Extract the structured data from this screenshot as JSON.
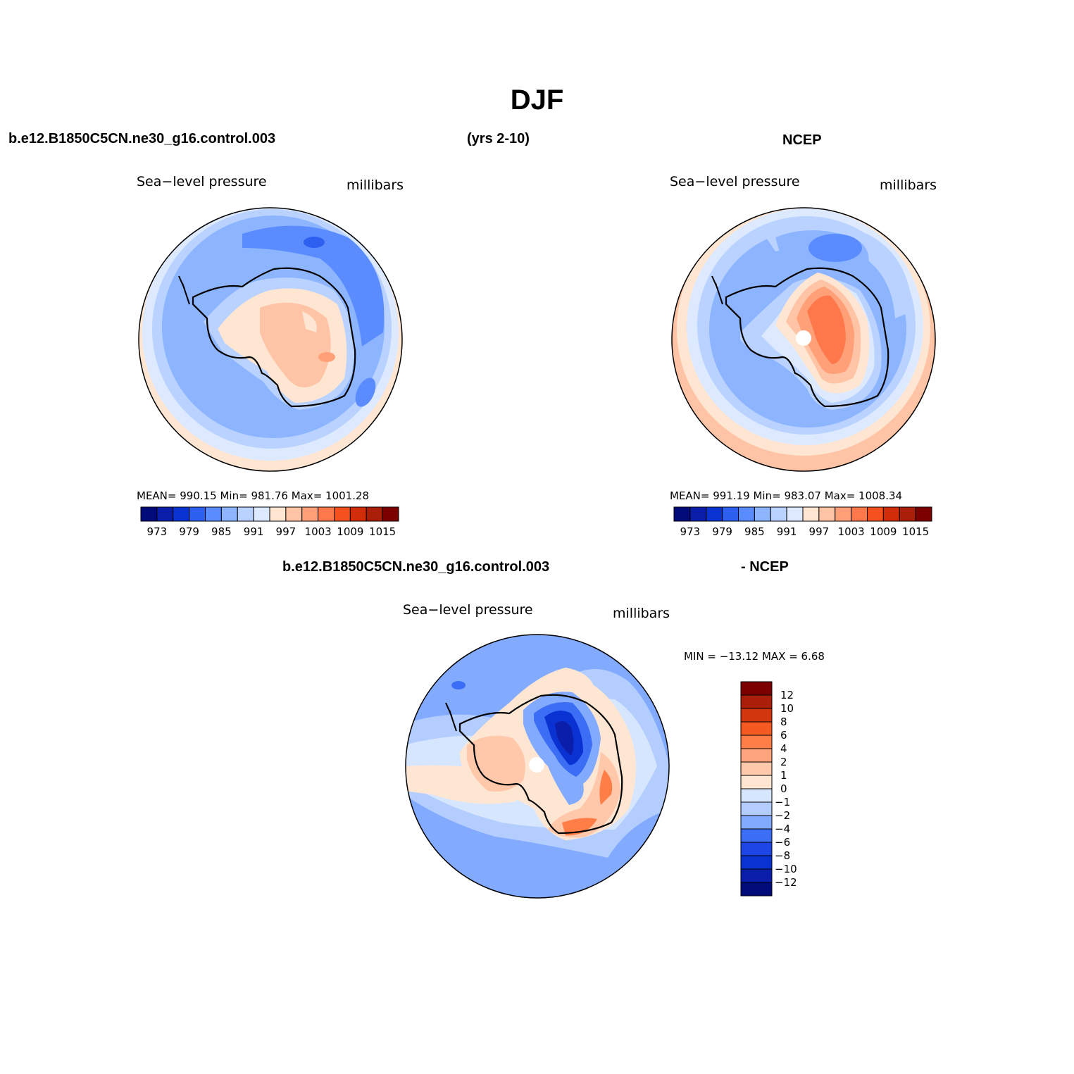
{
  "figure": {
    "title": "DJF",
    "case_name": "b.e12.B1850C5CN.ne30_g16.control.003",
    "years": "(yrs 2-10)",
    "obs_name": "NCEP",
    "diff_case_name": "b.e12.B1850C5CN.ne30_g16.control.003",
    "diff_obs_name": "- NCEP"
  },
  "panels": {
    "model": {
      "variable": "Sea−level pressure",
      "units": "millibars",
      "stats": "MEAN= 990.15   Min= 981.76   Max= 1001.28"
    },
    "obs": {
      "variable": "Sea−level pressure",
      "units": "millibars",
      "stats": "MEAN= 991.19   Min= 983.07   Max= 1008.34"
    },
    "diff": {
      "variable": "Sea−level pressure",
      "units": "millibars",
      "stats": "MIN = −13.12 MAX =    6.68"
    }
  },
  "colors": {
    "abs_palette": [
      "#000a78",
      "#0a1eaa",
      "#0a32d2",
      "#2d5ff0",
      "#5a8cff",
      "#8cb4ff",
      "#b9d2ff",
      "#dce9ff",
      "#ffe6d2",
      "#ffc3a5",
      "#ffa078",
      "#ff784b",
      "#f5501e",
      "#d22d0a",
      "#aa1e0a",
      "#7d0000"
    ],
    "diff_palette": [
      "#000a78",
      "#0a1eaa",
      "#0a32d2",
      "#1e46e6",
      "#3c6ef5",
      "#82aaff",
      "#b4cdff",
      "#d7e6ff",
      "#ffe6d2",
      "#ffc8aa",
      "#ffa57d",
      "#ff7d46",
      "#f55a23",
      "#d2370f",
      "#aa1e0a",
      "#7d0000"
    ],
    "land_outline": "#000000"
  },
  "chart_data": [
    {
      "type": "heatmap",
      "name": "model",
      "projection": "south polar stereographic",
      "title": "Sea−level pressure",
      "units": "millibars",
      "mean": 990.15,
      "min": 981.76,
      "max": 1001.28,
      "colorbar_ticks": [
        "973",
        "979",
        "985",
        "991",
        "997",
        "1003",
        "1009",
        "1015"
      ],
      "contour_levels": [
        970,
        973,
        976,
        979,
        982,
        985,
        988,
        991,
        994,
        997,
        1000,
        1003,
        1006,
        1009,
        1012,
        1015
      ]
    },
    {
      "type": "heatmap",
      "name": "obs",
      "projection": "south polar stereographic",
      "title": "Sea−level pressure",
      "units": "millibars",
      "mean": 991.19,
      "min": 983.07,
      "max": 1008.34,
      "colorbar_ticks": [
        "973",
        "979",
        "985",
        "991",
        "997",
        "1003",
        "1009",
        "1015"
      ],
      "contour_levels": [
        970,
        973,
        976,
        979,
        982,
        985,
        988,
        991,
        994,
        997,
        1000,
        1003,
        1006,
        1009,
        1012,
        1015
      ]
    },
    {
      "type": "heatmap",
      "name": "difference",
      "projection": "south polar stereographic",
      "title": "Sea−level pressure",
      "units": "millibars",
      "min": -13.12,
      "max": 6.68,
      "colorbar_ticks": [
        "12",
        "10",
        "8",
        "6",
        "4",
        "2",
        "1",
        "0",
        "−1",
        "−2",
        "−4",
        "−6",
        "−8",
        "−10",
        "−12"
      ]
    }
  ]
}
